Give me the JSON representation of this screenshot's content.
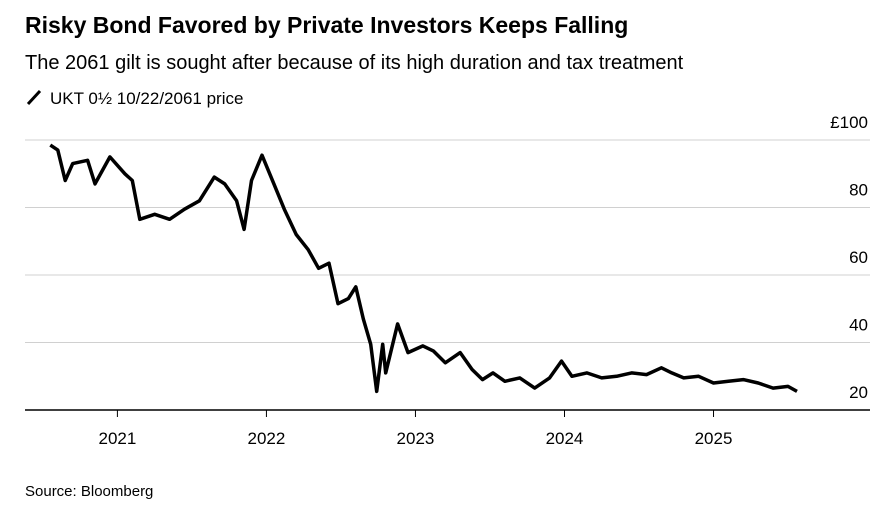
{
  "chart_data": {
    "type": "line",
    "title": "Risky Bond Favored by Private Investors Keeps Falling",
    "subtitle": "The 2061 gilt is sought after because of its high duration and tax treatment",
    "source": "Source: Bloomberg",
    "x": [
      2020.55,
      2020.6,
      2020.65,
      2020.7,
      2020.8,
      2020.85,
      2020.95,
      2021.05,
      2021.1,
      2021.15,
      2021.25,
      2021.35,
      2021.45,
      2021.55,
      2021.65,
      2021.72,
      2021.8,
      2021.85,
      2021.9,
      2021.97,
      2022.05,
      2022.12,
      2022.2,
      2022.28,
      2022.35,
      2022.42,
      2022.48,
      2022.55,
      2022.6,
      2022.65,
      2022.7,
      2022.74,
      2022.78,
      2022.8,
      2022.88,
      2022.95,
      2023.05,
      2023.12,
      2023.2,
      2023.3,
      2023.38,
      2023.45,
      2023.52,
      2023.6,
      2023.7,
      2023.8,
      2023.9,
      2023.98,
      2024.05,
      2024.15,
      2024.25,
      2024.35,
      2024.45,
      2024.55,
      2024.65,
      2024.72,
      2024.8,
      2024.9,
      2025.0,
      2025.1,
      2025.2,
      2025.3,
      2025.4,
      2025.5,
      2025.56
    ],
    "series": [
      {
        "name": "UKT 0½ 10/22/2061 price",
        "color": "#000000",
        "values": [
          98.5,
          97,
          88,
          93,
          94,
          87,
          95,
          90,
          88,
          76.5,
          78,
          76.5,
          79.5,
          82,
          89,
          87,
          82,
          73.5,
          88,
          95.5,
          87,
          79.5,
          72,
          67.5,
          62,
          63.5,
          51.5,
          53,
          56.5,
          47,
          39.5,
          25.5,
          39.5,
          31,
          45.5,
          37,
          39,
          37.5,
          34,
          37,
          32,
          29,
          31,
          28.5,
          29.5,
          26.5,
          29.5,
          34.5,
          30,
          31,
          29.5,
          30,
          31,
          30.5,
          32.5,
          31,
          29.5,
          30,
          28,
          28.5,
          29,
          28,
          26.5,
          27,
          25.5
        ]
      }
    ],
    "xlim": [
      2020.38,
      2026.05
    ],
    "xticks": [
      2021,
      2022,
      2023,
      2024,
      2025
    ],
    "ylim": [
      20,
      100
    ],
    "yticks": [
      20,
      40,
      60,
      80,
      {
        "value": 100,
        "label": "£100"
      }
    ],
    "grid": true
  }
}
